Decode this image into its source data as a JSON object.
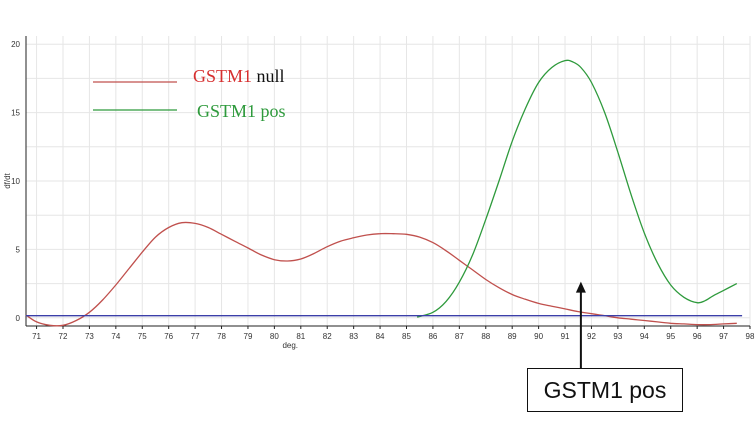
{
  "chart_data": {
    "type": "line",
    "xlabel": "deg.",
    "ylabel": "df/dt",
    "xlim": [
      70.6,
      98.0
    ],
    "ylim": [
      -0.6,
      20.6
    ],
    "x_ticks": [
      71,
      72,
      73,
      74,
      75,
      76,
      77,
      78,
      79,
      80,
      81,
      82,
      83,
      84,
      85,
      86,
      87,
      88,
      89,
      90,
      91,
      92,
      93,
      94,
      95,
      96,
      97,
      98
    ],
    "y_ticks": [
      0,
      5,
      10,
      15,
      20
    ],
    "grid": true,
    "legend_position": "top-left",
    "colors": {
      "null_series": "#c0504d",
      "pos_series": "#2e9a3c",
      "baseline": "#3b3fa8",
      "grid": "#e6e6e6",
      "axis": "#222222"
    },
    "series": [
      {
        "key": "null",
        "color": "#c0504d",
        "x": [
          70.6,
          71.0,
          71.5,
          72.0,
          72.5,
          73.0,
          73.5,
          74.0,
          74.5,
          75.0,
          75.5,
          76.0,
          76.5,
          77.0,
          77.5,
          78.0,
          78.5,
          79.0,
          79.5,
          80.0,
          80.5,
          81.0,
          81.5,
          82.0,
          82.5,
          83.0,
          83.5,
          84.0,
          84.5,
          85.0,
          85.5,
          86.0,
          86.5,
          87.0,
          87.5,
          88.0,
          88.5,
          89.0,
          89.5,
          90.0,
          90.5,
          91.0,
          91.5,
          92.0,
          92.5,
          93.0,
          93.5,
          94.0,
          94.5,
          95.0,
          95.5,
          96.0,
          96.5,
          97.0,
          97.5
        ],
        "y": [
          0.2,
          -0.3,
          -0.55,
          -0.55,
          -0.2,
          0.4,
          1.3,
          2.4,
          3.6,
          4.8,
          5.9,
          6.6,
          6.95,
          6.9,
          6.6,
          6.1,
          5.6,
          5.1,
          4.6,
          4.25,
          4.15,
          4.3,
          4.7,
          5.2,
          5.6,
          5.85,
          6.05,
          6.15,
          6.15,
          6.1,
          5.9,
          5.5,
          4.9,
          4.2,
          3.5,
          2.8,
          2.2,
          1.7,
          1.35,
          1.05,
          0.85,
          0.65,
          0.45,
          0.3,
          0.15,
          0.0,
          -0.1,
          -0.2,
          -0.3,
          -0.4,
          -0.45,
          -0.5,
          -0.5,
          -0.45,
          -0.4
        ]
      },
      {
        "key": "pos",
        "color": "#2e9a3c",
        "x": [
          85.4,
          86.0,
          86.5,
          87.0,
          87.5,
          88.0,
          88.5,
          89.0,
          89.5,
          90.0,
          90.5,
          91.0,
          91.3,
          91.6,
          92.0,
          92.5,
          93.0,
          93.5,
          94.0,
          94.5,
          95.0,
          95.5,
          96.0,
          96.3,
          96.6,
          97.0,
          97.5
        ],
        "y": [
          0.05,
          0.4,
          1.2,
          2.6,
          4.6,
          7.2,
          10.0,
          12.9,
          15.3,
          17.2,
          18.3,
          18.8,
          18.7,
          18.3,
          17.2,
          15.0,
          12.1,
          9.0,
          6.2,
          4.0,
          2.4,
          1.5,
          1.1,
          1.25,
          1.6,
          2.0,
          2.5
        ]
      },
      {
        "key": "baseline",
        "color": "#3b3fa8",
        "x": [
          70.6,
          97.7
        ],
        "y": [
          0.15,
          0.15
        ]
      }
    ]
  },
  "legend": [
    {
      "key": "null",
      "gene": "GSTM1",
      "rest": " null",
      "gene_color": "#d62f2f",
      "rest_color": "#111111",
      "line_color": "#c0504d"
    },
    {
      "key": "pos",
      "gene": "GSTM1",
      "rest": " pos",
      "gene_color": "#2e9a3c",
      "rest_color": "#2e9a3c",
      "line_color": "#2e9a3c"
    }
  ],
  "callout": {
    "label": "GSTM1 pos",
    "points_to_x": 91.6,
    "points_to_y": 2.5
  }
}
